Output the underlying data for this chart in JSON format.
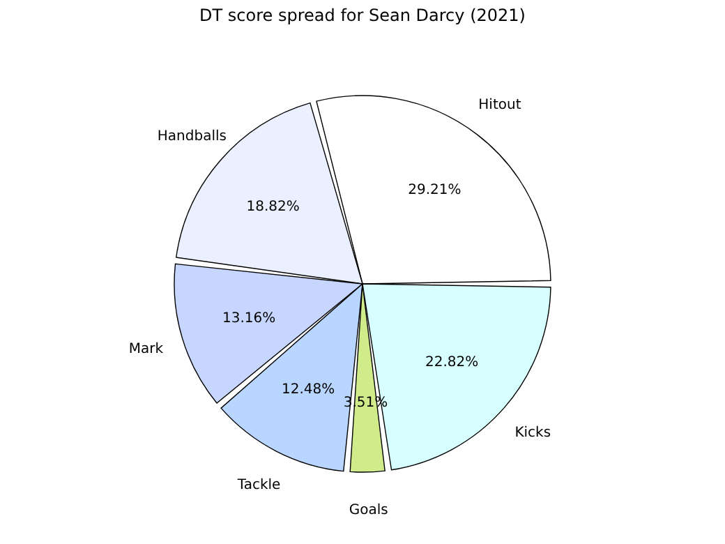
{
  "chart_data": {
    "type": "pie",
    "title": "DT score spread for Sean Darcy (2021)",
    "categories": [
      "Hitout",
      "Handballs",
      "Mark",
      "Tackle",
      "Goals",
      "Kicks"
    ],
    "values": [
      29.21,
      18.82,
      13.16,
      12.48,
      3.51,
      22.82
    ],
    "value_labels": [
      "29.21%",
      "18.82%",
      "13.16%",
      "12.48%",
      "3.51%",
      "22.82%"
    ],
    "colors": [
      "#ffffff",
      "#eaf0ff",
      "#c6d6ff",
      "#b8d6ff",
      "#d0ec8a",
      "#d8ffff"
    ],
    "legend": false
  }
}
